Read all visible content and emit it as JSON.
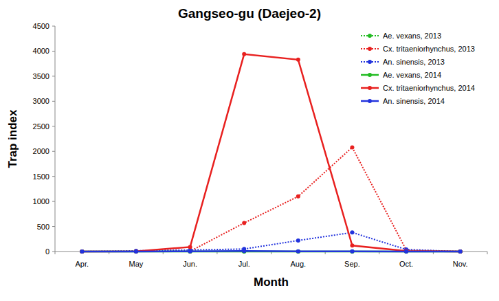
{
  "chart_data": {
    "type": "line",
    "title": "Gangseo-gu (Daejeo-2)",
    "x_label": "Month",
    "y_label": "Trap index",
    "categories": [
      "Apr.",
      "May",
      "Jun.",
      "Jul.",
      "Aug.",
      "Sep.",
      "Oct.",
      "Nov."
    ],
    "series": [
      {
        "name": "Ae. vexans, 2013",
        "color": "#22bb22",
        "line_style": "dotted",
        "marker": "circle",
        "values": [
          0,
          0,
          0,
          0,
          0,
          0,
          0,
          0
        ]
      },
      {
        "name": "Cx. tritaeniorhynchus, 2013",
        "color": "#e8201f",
        "line_style": "dotted",
        "marker": "circle",
        "values": [
          0,
          0,
          5,
          570,
          1100,
          2080,
          30,
          0
        ]
      },
      {
        "name": "An. sinensis, 2013",
        "color": "#2233dd",
        "line_style": "dotted",
        "marker": "circle",
        "values": [
          0,
          15,
          30,
          50,
          220,
          380,
          40,
          0
        ]
      },
      {
        "name": "Ae. vexans, 2014",
        "color": "#22bb22",
        "line_style": "solid",
        "marker": "circle",
        "values": [
          0,
          0,
          0,
          0,
          0,
          0,
          0,
          0
        ]
      },
      {
        "name": "Cx. tritaeniorhynchus, 2014",
        "color": "#e8201f",
        "line_style": "solid",
        "marker": "circle",
        "values": [
          0,
          5,
          90,
          3940,
          3830,
          120,
          10,
          0
        ]
      },
      {
        "name": "An. sinensis, 2014",
        "color": "#2233dd",
        "line_style": "solid",
        "marker": "circle",
        "values": [
          0,
          0,
          5,
          10,
          5,
          5,
          0,
          0
        ]
      }
    ],
    "ylim": [
      0,
      4500
    ],
    "yticks": [
      0,
      500,
      1000,
      1500,
      2000,
      2500,
      3000,
      3500,
      4000,
      4500
    ],
    "grid": false,
    "legend": "upper right"
  }
}
